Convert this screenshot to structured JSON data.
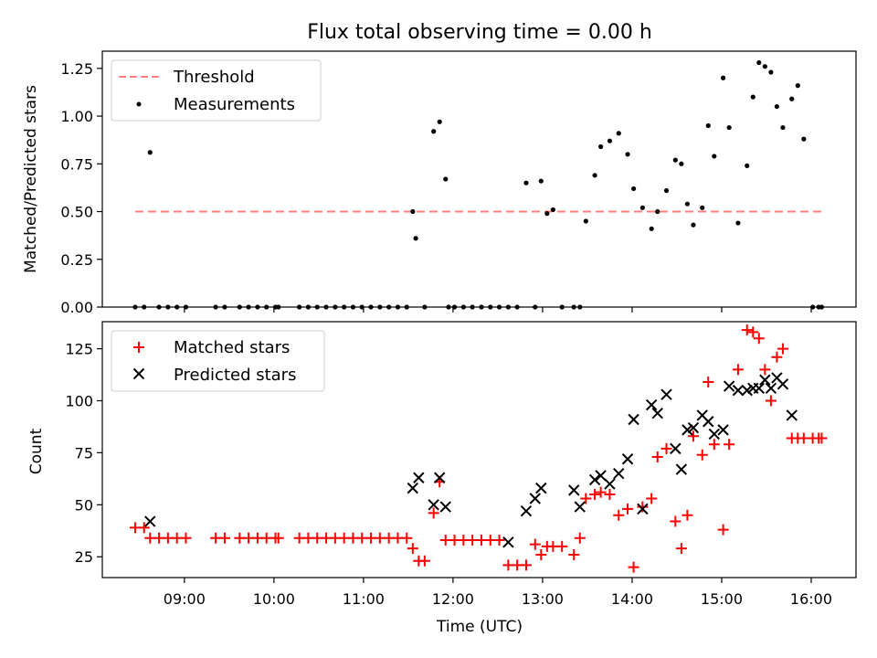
{
  "chart_data": [
    {
      "type": "scatter",
      "title": "Flux total observing time = 0.00 h",
      "xlabel": "",
      "ylabel": "Matched/Predicted stars",
      "xlim": [
        "08:05",
        "16:30"
      ],
      "ylim": [
        0,
        1.34
      ],
      "yticks": [
        "0.00",
        "0.25",
        "0.50",
        "0.75",
        "1.00",
        "1.25"
      ],
      "ytick_values": [
        0,
        0.25,
        0.5,
        0.75,
        1.0,
        1.25
      ],
      "grid": false,
      "legend_position": "top-left",
      "threshold": {
        "name": "Threshold",
        "value": 0.5,
        "x_range": [
          "08:27",
          "16:07"
        ],
        "color": "#ff7f7f",
        "style": "dashed"
      },
      "series": [
        {
          "name": "Measurements",
          "color": "#000000",
          "marker": "dot",
          "x": [
            "08:27",
            "08:33",
            "08:37",
            "08:43",
            "08:49",
            "08:55",
            "09:01",
            "09:21",
            "09:27",
            "09:37",
            "09:43",
            "09:49",
            "09:55",
            "10:01",
            "10:03",
            "10:17",
            "10:23",
            "10:29",
            "10:35",
            "10:41",
            "10:47",
            "10:53",
            "10:59",
            "11:05",
            "11:11",
            "11:17",
            "11:23",
            "11:29",
            "11:33",
            "11:35",
            "11:41",
            "11:47",
            "11:51",
            "11:55",
            "11:57",
            "12:01",
            "12:07",
            "12:13",
            "12:19",
            "12:25",
            "12:31",
            "12:37",
            "12:43",
            "12:49",
            "12:55",
            "12:59",
            "13:03",
            "13:07",
            "13:13",
            "13:21",
            "13:25",
            "13:29",
            "13:35",
            "13:39",
            "13:45",
            "13:51",
            "13:57",
            "14:01",
            "14:07",
            "14:13",
            "14:17",
            "14:23",
            "14:29",
            "14:33",
            "14:37",
            "14:41",
            "14:47",
            "14:51",
            "14:55",
            "15:01",
            "15:05",
            "15:11",
            "15:17",
            "15:21",
            "15:25",
            "15:29",
            "15:33",
            "15:37",
            "15:41",
            "15:47",
            "15:51",
            "15:55",
            "16:01",
            "16:05",
            "16:07"
          ],
          "y": [
            0,
            0,
            0.81,
            0,
            0,
            0,
            0,
            0,
            0,
            0,
            0,
            0,
            0,
            0,
            0,
            0,
            0,
            0,
            0,
            0,
            0,
            0,
            0,
            0,
            0,
            0,
            0,
            0,
            0.5,
            0.36,
            0,
            0.92,
            0.97,
            0.67,
            0,
            0,
            0,
            0,
            0,
            0,
            0,
            0,
            0,
            0.65,
            0,
            0.66,
            0.49,
            0.51,
            0,
            0,
            0,
            0.45,
            0.69,
            0.84,
            0.87,
            0.91,
            0.8,
            0.62,
            0.52,
            0.41,
            0.5,
            0.61,
            0.77,
            0.75,
            0.54,
            0.43,
            0.52,
            0.95,
            0.79,
            1.2,
            0.94,
            0.44,
            0.74,
            1.1,
            1.28,
            1.26,
            1.23,
            1.05,
            0.94,
            1.09,
            1.16,
            0.88,
            0,
            0,
            0
          ]
        }
      ]
    },
    {
      "type": "scatter",
      "title": "",
      "xlabel": "Time (UTC)",
      "ylabel": "Count",
      "xlim": [
        "08:05",
        "16:30"
      ],
      "ylim": [
        15,
        138
      ],
      "xticks": [
        "09:00",
        "10:00",
        "11:00",
        "12:00",
        "13:00",
        "14:00",
        "15:00",
        "16:00"
      ],
      "yticks": [
        "25",
        "50",
        "75",
        "100",
        "125"
      ],
      "ytick_values": [
        25,
        50,
        75,
        100,
        125
      ],
      "grid": false,
      "legend_position": "top-left",
      "series": [
        {
          "name": "Matched stars",
          "color": "#ff0000",
          "marker": "plus",
          "x": [
            "08:27",
            "08:33",
            "08:37",
            "08:43",
            "08:49",
            "08:55",
            "09:01",
            "09:21",
            "09:27",
            "09:37",
            "09:43",
            "09:49",
            "09:55",
            "10:01",
            "10:03",
            "10:17",
            "10:23",
            "10:29",
            "10:35",
            "10:41",
            "10:47",
            "10:53",
            "10:59",
            "11:05",
            "11:11",
            "11:17",
            "11:23",
            "11:29",
            "11:33",
            "11:37",
            "11:41",
            "11:47",
            "11:51",
            "11:55",
            "12:01",
            "12:07",
            "12:13",
            "12:19",
            "12:25",
            "12:31",
            "12:37",
            "12:43",
            "12:49",
            "12:55",
            "12:59",
            "13:03",
            "13:07",
            "13:13",
            "13:21",
            "13:25",
            "13:29",
            "13:35",
            "13:39",
            "13:45",
            "13:51",
            "13:57",
            "14:01",
            "14:07",
            "14:13",
            "14:17",
            "14:23",
            "14:29",
            "14:33",
            "14:37",
            "14:41",
            "14:47",
            "14:51",
            "14:55",
            "15:01",
            "15:05",
            "15:11",
            "15:17",
            "15:21",
            "15:25",
            "15:29",
            "15:33",
            "15:37",
            "15:41",
            "15:47",
            "15:51",
            "15:55",
            "16:01",
            "16:05",
            "16:07"
          ],
          "y": [
            39,
            39,
            34,
            34,
            34,
            34,
            34,
            34,
            34,
            34,
            34,
            34,
            34,
            34,
            34,
            34,
            34,
            34,
            34,
            34,
            34,
            34,
            34,
            34,
            34,
            34,
            34,
            34,
            29,
            23,
            23,
            46,
            61,
            33,
            33,
            33,
            33,
            33,
            33,
            33,
            21,
            21,
            21,
            31,
            26,
            30,
            30,
            30,
            26,
            34,
            53,
            55,
            56,
            55,
            45,
            48,
            20,
            49,
            53,
            73,
            77,
            42,
            29,
            45,
            83,
            74,
            109,
            79,
            38,
            79,
            115,
            134,
            133,
            130,
            115,
            100,
            121,
            125,
            82,
            82,
            82,
            82,
            82,
            82
          ]
        },
        {
          "name": "Predicted stars",
          "color": "#000000",
          "marker": "x",
          "x": [
            "08:37",
            "11:33",
            "11:37",
            "11:47",
            "11:51",
            "11:55",
            "12:37",
            "12:49",
            "12:55",
            "12:59",
            "13:21",
            "13:25",
            "13:35",
            "13:39",
            "13:45",
            "13:51",
            "13:57",
            "14:01",
            "14:07",
            "14:13",
            "14:17",
            "14:23",
            "14:29",
            "14:33",
            "14:37",
            "14:41",
            "14:47",
            "14:51",
            "14:55",
            "15:01",
            "15:05",
            "15:11",
            "15:17",
            "15:21",
            "15:25",
            "15:29",
            "15:33",
            "15:37",
            "15:41",
            "15:47"
          ],
          "y": [
            42,
            58,
            63,
            50,
            63,
            49,
            32,
            47,
            53,
            58,
            57,
            49,
            62,
            64,
            60,
            65,
            72,
            91,
            48,
            98,
            94,
            103,
            77,
            67,
            86,
            87,
            93,
            90,
            84,
            86,
            107,
            105,
            105,
            106,
            106,
            110,
            106,
            111,
            108,
            93
          ]
        }
      ]
    }
  ]
}
